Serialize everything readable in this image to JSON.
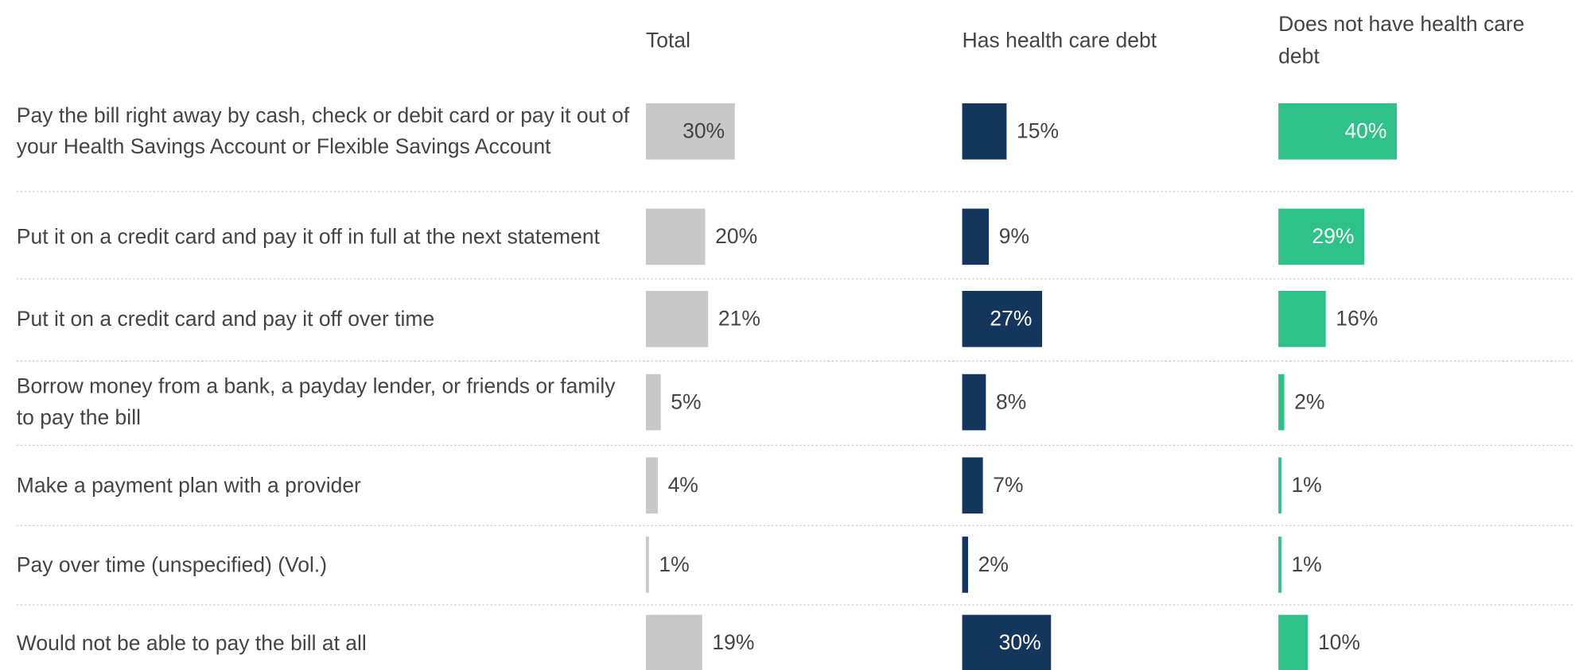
{
  "chart_data": {
    "type": "bar",
    "categories": [
      "Pay the bill right away by cash, check or debit card or pay it out of your Health Savings Account or Flexible Savings Account",
      "Put it on a credit card and pay it off in full at the next statement",
      "Put it on a credit card and pay it off over time",
      "Borrow money from a bank, a payday lender, or friends or family to pay the bill",
      "Make a payment plan with a provider",
      "Pay over time (unspecified) (Vol.)",
      "Would not be able to pay the bill at all"
    ],
    "series": [
      {
        "name": "Total",
        "color": "#c8c8c8",
        "label_color": "#444444",
        "values": [
          30,
          20,
          21,
          5,
          4,
          1,
          19
        ],
        "value_labels": [
          "30%",
          "20%",
          "21%",
          "5%",
          "4%",
          "1%",
          "19%"
        ]
      },
      {
        "name": "Has health care debt",
        "color": "#14365d",
        "label_color": "#ffffff",
        "values": [
          15,
          9,
          27,
          8,
          7,
          2,
          30
        ],
        "value_labels": [
          "15%",
          "9%",
          "27%",
          "8%",
          "7%",
          "2%",
          "30%"
        ]
      },
      {
        "name": "Does not have health care debt",
        "color": "#2ec18a",
        "label_color": "#ffffff",
        "values": [
          40,
          29,
          16,
          2,
          1,
          1,
          10
        ],
        "value_labels": [
          "40%",
          "29%",
          "16%",
          "2%",
          "1%",
          "1%",
          "10%"
        ]
      }
    ]
  }
}
